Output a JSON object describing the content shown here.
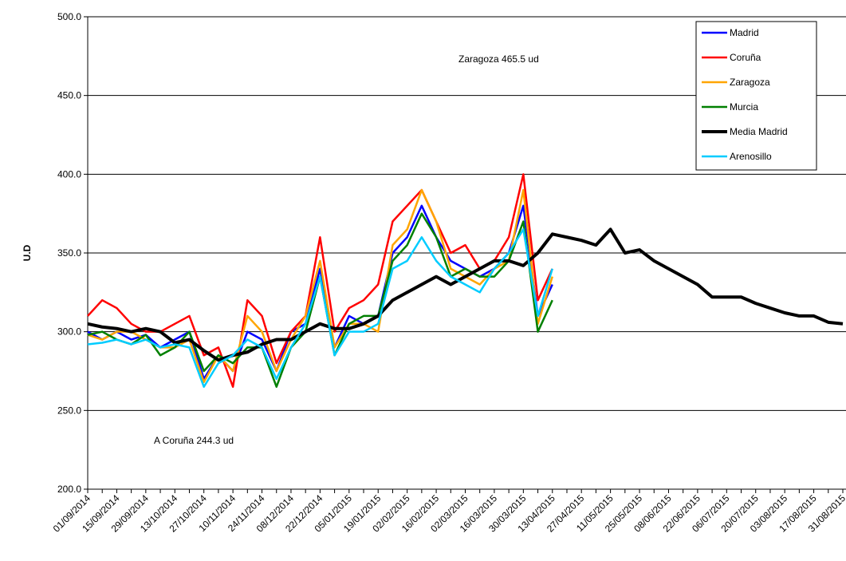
{
  "chart_data": {
    "type": "line",
    "y_label": "U.D",
    "annotations": [
      "Zaragoza 465.5 ud",
      "A Coruña 244.3 ud"
    ],
    "categories": [
      "01/09/2014",
      null,
      "15/09/2014",
      null,
      "29/09/2014",
      null,
      "13/10/2014",
      null,
      "27/10/2014",
      null,
      "10/11/2014",
      null,
      "24/11/2014",
      null,
      "08/12/2014",
      null,
      "22/12/2014",
      null,
      "05/01/2015",
      null,
      "19/01/2015",
      null,
      "02/02/2015",
      null,
      "16/02/2015",
      null,
      "02/03/2015",
      null,
      "16/03/2015",
      null,
      "30/03/2015",
      null,
      "13/04/2015",
      null,
      "27/04/2015",
      null,
      "11/05/2015",
      null,
      "25/05/2015",
      null,
      "08/06/2015",
      null,
      "22/06/2015",
      null,
      "06/07/2015",
      null,
      "20/07/2015",
      null,
      "03/08/2015",
      null,
      "17/08/2015",
      null,
      "31/08/2015"
    ],
    "series": [
      {
        "name": "Madrid",
        "color": "#0000ff",
        "width": 2.5,
        "values": [
          300,
          295,
          300,
          295,
          298,
          290,
          295,
          300,
          270,
          285,
          275,
          300,
          295,
          275,
          300,
          305,
          340,
          290,
          310,
          305,
          310,
          350,
          360,
          380,
          360,
          345,
          340,
          335,
          340,
          350,
          380,
          310,
          330,
          null,
          null,
          null,
          null,
          null,
          null,
          null,
          null,
          null,
          null,
          null,
          null,
          null,
          null,
          null,
          null,
          null,
          null,
          null,
          null
        ]
      },
      {
        "name": "Coruña",
        "color": "#ff0000",
        "width": 2.5,
        "values": [
          310,
          320,
          315,
          305,
          300,
          300,
          305,
          310,
          285,
          290,
          265,
          320,
          310,
          280,
          300,
          310,
          360,
          300,
          315,
          320,
          330,
          370,
          380,
          390,
          370,
          350,
          355,
          340,
          345,
          360,
          400,
          320,
          340,
          null,
          null,
          null,
          null,
          null,
          null,
          null,
          null,
          null,
          null,
          null,
          null,
          null,
          null,
          null,
          null,
          null,
          null,
          null,
          null
        ]
      },
      {
        "name": "Zaragoza",
        "color": "#ffa500",
        "width": 2.5,
        "values": [
          298,
          295,
          300,
          300,
          295,
          290,
          290,
          295,
          268,
          285,
          275,
          310,
          300,
          275,
          295,
          310,
          345,
          290,
          305,
          305,
          300,
          355,
          365,
          390,
          370,
          340,
          335,
          330,
          340,
          345,
          390,
          305,
          335,
          null,
          null,
          null,
          null,
          null,
          null,
          null,
          null,
          null,
          null,
          null,
          null,
          null,
          null,
          null,
          null,
          null,
          null,
          null,
          null
        ]
      },
      {
        "name": "Murcia",
        "color": "#008000",
        "width": 2.5,
        "values": [
          298,
          300,
          295,
          292,
          298,
          285,
          290,
          300,
          275,
          285,
          280,
          290,
          290,
          265,
          290,
          300,
          335,
          285,
          305,
          310,
          310,
          345,
          355,
          375,
          360,
          335,
          340,
          335,
          335,
          345,
          370,
          300,
          320,
          null,
          null,
          null,
          null,
          null,
          null,
          null,
          null,
          null,
          null,
          null,
          null,
          null,
          null,
          null,
          null,
          null,
          null,
          null,
          null
        ]
      },
      {
        "name": "Media Madrid",
        "color": "#000000",
        "width": 4,
        "values": [
          305,
          303,
          302,
          300,
          302,
          300,
          293,
          295,
          288,
          282,
          285,
          287,
          292,
          295,
          295,
          300,
          305,
          302,
          302,
          305,
          310,
          320,
          325,
          330,
          335,
          330,
          335,
          340,
          345,
          345,
          342,
          350,
          362,
          360,
          358,
          355,
          365,
          350,
          352,
          345,
          340,
          335,
          330,
          322,
          322,
          322,
          318,
          315,
          312,
          310,
          310,
          306,
          305
        ]
      },
      {
        "name": "Arenosillo",
        "color": "#00ccff",
        "width": 2.5,
        "values": [
          292,
          293,
          295,
          292,
          295,
          290,
          292,
          290,
          265,
          280,
          285,
          295,
          290,
          270,
          290,
          305,
          335,
          285,
          300,
          300,
          305,
          340,
          345,
          360,
          345,
          335,
          330,
          325,
          340,
          350,
          365,
          310,
          340,
          null,
          null,
          null,
          null,
          null,
          null,
          null,
          null,
          null,
          null,
          null,
          null,
          null,
          null,
          null,
          null,
          null,
          null,
          null,
          null
        ]
      }
    ],
    "ylim": [
      200,
      500
    ],
    "yticks": [
      {
        "value": 200,
        "label": "200.0"
      },
      {
        "value": 250,
        "label": "250.0"
      },
      {
        "value": 300,
        "label": "300.0"
      },
      {
        "value": 350,
        "label": "350.0"
      },
      {
        "value": 400,
        "label": "400.0"
      },
      {
        "value": 450,
        "label": "450.0"
      },
      {
        "value": 500,
        "label": "500.0"
      }
    ],
    "grid": true,
    "legend": "top-right"
  }
}
